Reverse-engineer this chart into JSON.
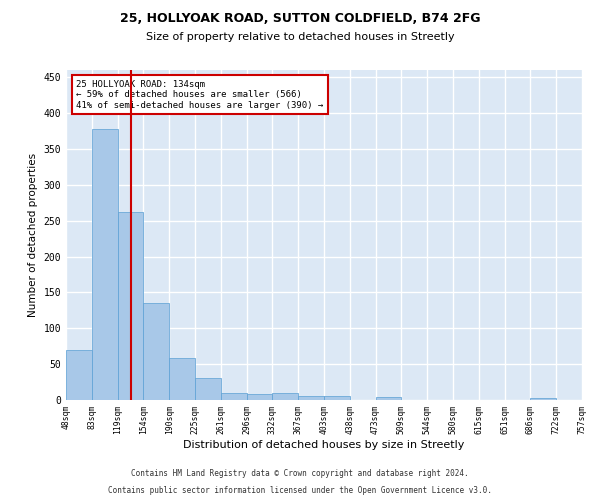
{
  "title1": "25, HOLLYOAK ROAD, SUTTON COLDFIELD, B74 2FG",
  "title2": "Size of property relative to detached houses in Streetly",
  "xlabel": "Distribution of detached houses by size in Streetly",
  "ylabel": "Number of detached properties",
  "tick_labels": [
    "48sqm",
    "83sqm",
    "119sqm",
    "154sqm",
    "190sqm",
    "225sqm",
    "261sqm",
    "296sqm",
    "332sqm",
    "367sqm",
    "403sqm",
    "438sqm",
    "473sqm",
    "509sqm",
    "544sqm",
    "580sqm",
    "615sqm",
    "651sqm",
    "686sqm",
    "722sqm",
    "757sqm"
  ],
  "values": [
    70,
    378,
    262,
    135,
    59,
    30,
    10,
    8,
    10,
    5,
    5,
    0,
    4,
    0,
    0,
    0,
    0,
    0,
    3,
    0
  ],
  "bar_color": "#a8c8e8",
  "bar_edge_color": "#5a9fd4",
  "vline_color": "#cc0000",
  "annotation_line1": "25 HOLLYOAK ROAD: 134sqm",
  "annotation_line2": "← 59% of detached houses are smaller (566)",
  "annotation_line3": "41% of semi-detached houses are larger (390) →",
  "annotation_box_color": "#ffffff",
  "annotation_box_edge": "#cc0000",
  "ylim": [
    0,
    460
  ],
  "yticks": [
    0,
    50,
    100,
    150,
    200,
    250,
    300,
    350,
    400,
    450
  ],
  "footer1": "Contains HM Land Registry data © Crown copyright and database right 2024.",
  "footer2": "Contains public sector information licensed under the Open Government Licence v3.0.",
  "bg_color": "#dce8f5",
  "grid_color": "#ffffff"
}
